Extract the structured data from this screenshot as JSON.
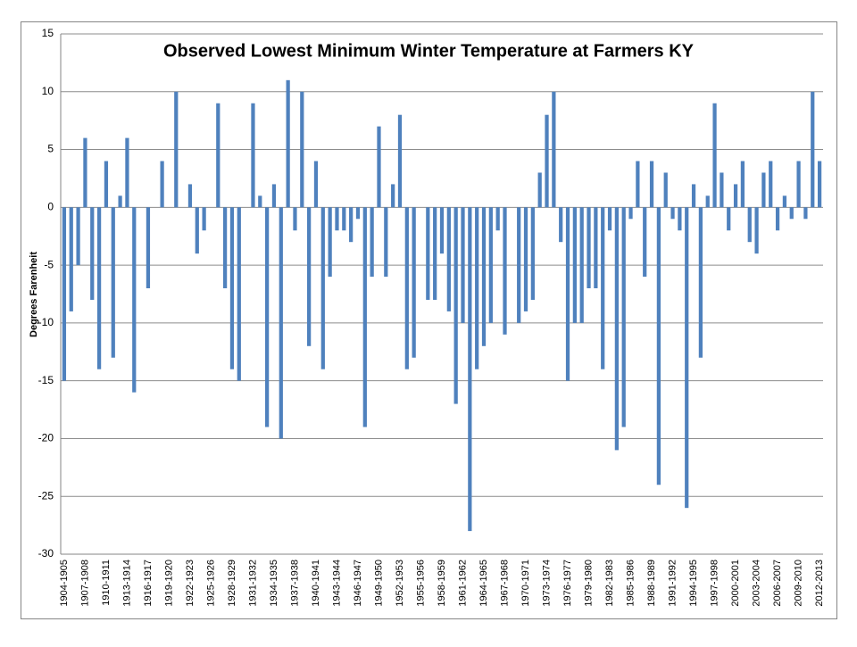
{
  "chart_data": {
    "type": "bar",
    "title": "Observed Lowest Minimum Winter Temperature at Farmers KY",
    "y_label": "Degrees Farenheit",
    "categories": [
      "1904-1905",
      null,
      null,
      "1907-1908",
      null,
      null,
      "1910-1911",
      null,
      null,
      "1913-1914",
      null,
      null,
      "1916-1917",
      null,
      null,
      "1919-1920",
      null,
      null,
      "1922-1923",
      null,
      null,
      "1925-1926",
      null,
      null,
      "1928-1929",
      null,
      null,
      "1931-1932",
      null,
      null,
      "1934-1935",
      null,
      null,
      "1937-1938",
      null,
      null,
      "1940-1941",
      null,
      null,
      "1943-1944",
      null,
      null,
      "1946-1947",
      null,
      null,
      "1949-1950",
      null,
      null,
      "1952-1953",
      null,
      null,
      "1955-1956",
      null,
      null,
      "1958-1959",
      null,
      null,
      "1961-1962",
      null,
      null,
      "1964-1965",
      null,
      null,
      "1967-1968",
      null,
      null,
      "1970-1971",
      null,
      null,
      "1973-1974",
      null,
      null,
      "1976-1977",
      null,
      null,
      "1979-1980",
      null,
      null,
      "1982-1983",
      null,
      null,
      "1985-1986",
      null,
      null,
      "1988-1989",
      null,
      null,
      "1991-1992",
      null,
      null,
      "1994-1995",
      null,
      null,
      "1997-1998",
      null,
      null,
      "2000-2001",
      null,
      null,
      "2003-2004",
      null,
      null,
      "2006-2007",
      null,
      null,
      "2009-2010",
      null,
      null,
      "2012-2013"
    ],
    "values": [
      -15,
      -9,
      -5,
      6,
      -8,
      -14,
      4,
      -13,
      1,
      6,
      -16,
      0,
      -7,
      0,
      4,
      0,
      10,
      0,
      2,
      -4,
      -2,
      0,
      9,
      -7,
      -14,
      -15,
      0,
      9,
      1,
      -19,
      2,
      -20,
      11,
      -2,
      10,
      -12,
      4,
      -14,
      -6,
      -2,
      -2,
      -3,
      -1,
      -19,
      -6,
      7,
      -6,
      2,
      8,
      -14,
      -13,
      0,
      -8,
      -8,
      -4,
      -9,
      -17,
      -10,
      -28,
      -14,
      -12,
      -10,
      -2,
      -11,
      0,
      -10,
      -9,
      -8,
      3,
      8,
      10,
      -3,
      -15,
      -10,
      -10,
      -7,
      -7,
      -14,
      -2,
      -21,
      -19,
      -1,
      4,
      -6,
      4,
      -24,
      3,
      -1,
      -2,
      -26,
      2,
      -13,
      1,
      9,
      3,
      -2,
      2,
      4,
      -3,
      -4,
      3,
      4,
      -2,
      1,
      -1,
      4,
      -1,
      10,
      4
    ],
    "color": "#4f81bd",
    "ylim": [
      -30,
      15
    ],
    "yticks": [
      15,
      10,
      5,
      0,
      -5,
      -10,
      -15,
      -20,
      -25,
      -30
    ],
    "grid": true
  }
}
